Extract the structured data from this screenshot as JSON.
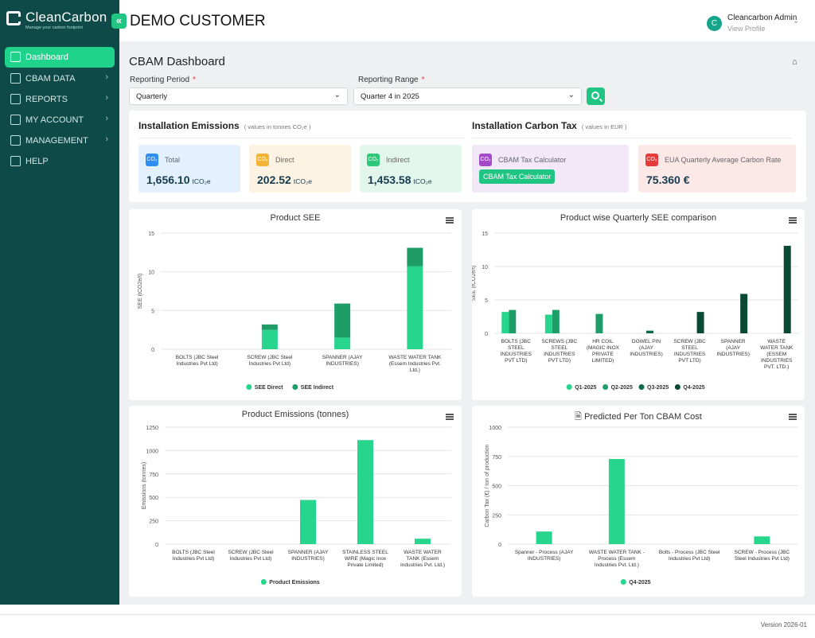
{
  "brand": {
    "name": "CleanCarbon",
    "tagline": "Manage your carbon footprint"
  },
  "topbar": {
    "customer": "DEMO CUSTOMER",
    "user_name": "Cleancarbon Admin",
    "user_link": "View Profile",
    "avatar_letter": "C"
  },
  "sidebar": {
    "items": [
      {
        "label": "Dashboard",
        "icon": "dashboard-icon",
        "active": true,
        "chevron": ""
      },
      {
        "label": "CBAM DATA",
        "icon": "database-icon",
        "chevron": "›"
      },
      {
        "label": "REPORTS",
        "icon": "report-icon",
        "chevron": "›"
      },
      {
        "label": "MY ACCOUNT",
        "icon": "account-icon",
        "chevron": "›"
      },
      {
        "label": "MANAGEMENT",
        "icon": "management-icon",
        "chevron": "›"
      },
      {
        "label": "HELP",
        "icon": "help-icon",
        "chevron": ""
      }
    ]
  },
  "page": {
    "title": "CBAM Dashboard"
  },
  "filters": {
    "period_label": "Reporting Period",
    "period_value": "Quarterly",
    "range_label": "Reporting Range",
    "range_value": "Quarter 4 in 2025",
    "required_mark": "*"
  },
  "emissions": {
    "title": "Installation Emissions",
    "note": "( values in tonnes CO₂e )",
    "tiles": [
      {
        "label": "Total",
        "value": "1,656.10",
        "unit": "tCO₂e",
        "bg": "#e3f0fd",
        "icon_bg": "#2e8ff0"
      },
      {
        "label": "Direct",
        "value": "202.52",
        "unit": "tCO₂e",
        "bg": "#fdf3e3",
        "icon_bg": "#f3b435"
      },
      {
        "label": "Indirect",
        "value": "1,453.58",
        "unit": "tCO₂e",
        "bg": "#e3f6ec",
        "icon_bg": "#2ec879"
      }
    ]
  },
  "tax": {
    "title": "Installation Carbon Tax",
    "note": "( values in EUR )",
    "calc_label": "CBAM Tax Calculator",
    "calc_button": "CBAM Tax Calculator",
    "rate_label": "EUA Quarterly Average Carbon Rate",
    "rate_value": "75.360 €",
    "calc_bg": "#f2e8f8",
    "calc_icon_bg": "#a54bc9",
    "rate_bg": "#fde8e8",
    "rate_icon_bg": "#e73a3a"
  },
  "icons": {
    "menu": "hamburger-icon",
    "home": "home-icon",
    "search": "search-icon",
    "pdf": "document-icon"
  },
  "colors": {
    "accent": "#20c483",
    "light_green": "#27d68c",
    "mid_green": "#1f9d69",
    "dark_green": "#0e6a47",
    "darkest_green": "#0a4a32",
    "sidebar": "#0e4a47"
  },
  "footer": {
    "version": "Version 2026-01"
  },
  "chart_data": [
    {
      "id": "see",
      "type": "bar",
      "stacked": true,
      "title": "Product SEE",
      "ylabel": "SEE (tCO2e/t)",
      "ylim": [
        0,
        15
      ],
      "yticks": [
        0,
        5,
        10,
        15
      ],
      "categories": [
        [
          "BOLTS (JBC Steel",
          "Industries Pvt Ltd)"
        ],
        [
          "SCREW (JBC Steel",
          "Industries Pvt Ltd)"
        ],
        [
          "SPANNER (AJAY",
          "INDUSTRIES)"
        ],
        [
          "WASTE WATER TANK",
          "(Essem Industries Pvt.",
          "Ltd.)"
        ]
      ],
      "series": [
        {
          "name": "SEE Direct",
          "values": [
            0,
            2.5,
            1.5,
            10.7
          ]
        },
        {
          "name": "SEE Indirect",
          "values": [
            0,
            0.7,
            4.4,
            2.4
          ]
        }
      ],
      "legend": "bottom"
    },
    {
      "id": "quarterly",
      "type": "bar",
      "title": "Product wise Quarterly SEE comparison",
      "ylabel": "SEE (tCO2e/t)",
      "ylim": [
        0,
        15
      ],
      "yticks": [
        0,
        5,
        10,
        15
      ],
      "categories": [
        [
          "BOLTS (JBC",
          "STEEL",
          "INDUSTRIES",
          "PVT LTD)"
        ],
        [
          "SCREWS (JBC",
          "STEEL",
          "INDUSTRIES",
          "PVT LTD)"
        ],
        [
          "HR COIL",
          "(MAGIC INOX",
          "PRIVATE",
          "LIMITED)"
        ],
        [
          "DOWEL PIN",
          "(AJAY",
          "INDUSTRIES)"
        ],
        [
          "SCREW (JBC",
          "STEEL",
          "INDUSTRIES",
          "PVT LTD)"
        ],
        [
          "SPANNER",
          "(AJAY",
          "INDUSTRIES)"
        ],
        [
          "WASTE",
          "WATER TANK",
          "(ESSEM",
          "INDUSTRIES",
          "PVT. LTD.)"
        ]
      ],
      "series": [
        {
          "name": "Q1-2025",
          "values": [
            3.2,
            2.8,
            0,
            0,
            0,
            0,
            0
          ]
        },
        {
          "name": "Q2-2025",
          "values": [
            3.5,
            3.5,
            2.9,
            0,
            0,
            0,
            0
          ]
        },
        {
          "name": "Q3-2025",
          "values": [
            0,
            0,
            0,
            0.4,
            0,
            0,
            0
          ]
        },
        {
          "name": "Q4-2025",
          "values": [
            0,
            0,
            0,
            0,
            3.2,
            5.9,
            13.1
          ]
        }
      ],
      "legend": "bottom"
    },
    {
      "id": "emissions",
      "type": "bar",
      "title": "Product Emissions (tonnes)",
      "ylabel": "Emissions (tonnes)",
      "ylim": [
        0,
        1250
      ],
      "yticks": [
        0,
        250,
        500,
        750,
        1000,
        1250
      ],
      "categories": [
        [
          "BOLTS (JBC Steel",
          "Industries Pvt Ltd)"
        ],
        [
          "SCREW (JBC Steel",
          "Industries Pvt Ltd)"
        ],
        [
          "SPANNER (AJAY",
          "INDUSTRIES)"
        ],
        [
          "STAINLESS STEEL",
          "WIRE (Magic Inox",
          "Private Limited)"
        ],
        [
          "WASTE WATER",
          "TANK (Essem",
          "Industries Pvt. Ltd.)"
        ]
      ],
      "series": [
        {
          "name": "Product Emissions",
          "values": [
            0,
            0,
            472,
            1112,
            58
          ]
        }
      ],
      "legend": "bottom"
    },
    {
      "id": "cost",
      "type": "bar",
      "title": "Predicted Per Ton CBAM Cost",
      "ylabel": "Carbon Tax (€) / ton of production",
      "ylim": [
        0,
        1000
      ],
      "yticks": [
        0,
        250,
        500,
        750,
        1000
      ],
      "categories": [
        [
          "Spanner - Process (AJAY",
          "INDUSTRIES)"
        ],
        [
          "WASTE WATER TANK -",
          "Process (Essem",
          "Industries Pvt. Ltd.)"
        ],
        [
          "Bolts - Process (JBC Steel",
          "Industries Pvt Ltd)"
        ],
        [
          "SCREW - Process (JBC",
          "Steel Industries Pvt Ltd)"
        ]
      ],
      "series": [
        {
          "name": "Q4-2025",
          "values": [
            108,
            728,
            0,
            66
          ]
        }
      ],
      "legend": "bottom"
    }
  ]
}
